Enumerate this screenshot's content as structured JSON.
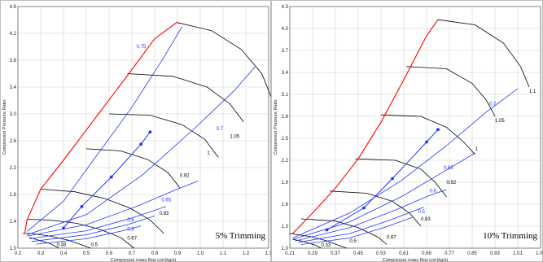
{
  "chart_data": [
    {
      "type": "line",
      "title": "",
      "annotation": "5% Trimming",
      "xlabel": "Compressor mass flow corr(kg/s)",
      "ylabel": "Compressor Pressure Ratio",
      "xlim": [
        0.2,
        1.3
      ],
      "ylim": [
        1.0,
        4.6
      ],
      "x_ticks": [
        "0.2",
        "0.3",
        "0.4",
        "0.5",
        "0.6",
        "0.7",
        "0.8",
        "0.9",
        "1.0",
        "1.1",
        "1.2",
        "1.3"
      ],
      "y_ticks": [
        "1.0",
        "1.4",
        "1.8",
        "2.2",
        "2.6",
        "3.0",
        "3.4",
        "3.8",
        "4.2",
        "4.6"
      ],
      "colors": {
        "surge": "#ff0000",
        "efficiency": "#1f35ff",
        "speed": "#000000",
        "operating_points": "#1f35ff"
      },
      "surge_line": {
        "x": [
          0.23,
          0.24,
          0.3,
          0.4,
          0.5,
          0.6,
          0.7,
          0.8,
          0.9
        ],
        "y": [
          1.22,
          1.42,
          1.88,
          2.31,
          2.76,
          3.21,
          3.66,
          4.12,
          4.37
        ]
      },
      "speed_lines": [
        {
          "label": "0.5",
          "x": [
            0.22,
            0.26,
            0.34,
            0.42,
            0.48,
            0.52
          ],
          "y": [
            1.22,
            1.22,
            1.18,
            1.12,
            1.05,
            1.0
          ]
        },
        {
          "label": "0.33",
          "x": [
            0.25,
            0.29,
            0.34,
            0.38
          ],
          "y": [
            1.16,
            1.12,
            1.07,
            1.0
          ]
        },
        {
          "label": "0.67",
          "x": [
            0.24,
            0.34,
            0.46,
            0.56,
            0.65,
            0.71
          ],
          "y": [
            1.43,
            1.42,
            1.37,
            1.28,
            1.16,
            1.0
          ]
        },
        {
          "label": "0.83",
          "x": [
            0.3,
            0.45,
            0.58,
            0.69,
            0.78,
            0.84
          ],
          "y": [
            1.88,
            1.84,
            1.74,
            1.6,
            1.42,
            1.22
          ]
        },
        {
          "label": "0.92",
          "x": [
            0.5,
            0.65,
            0.77,
            0.86,
            0.91
          ],
          "y": [
            2.48,
            2.45,
            2.32,
            2.12,
            1.9
          ]
        },
        {
          "label": "1",
          "x": [
            0.6,
            0.78,
            0.92,
            1.02,
            1.08
          ],
          "y": [
            3.0,
            2.98,
            2.84,
            2.62,
            2.35
          ]
        },
        {
          "label": "1.05",
          "x": [
            0.68,
            0.88,
            1.03,
            1.13,
            1.19
          ],
          "y": [
            3.6,
            3.56,
            3.4,
            3.15,
            2.88
          ]
        },
        {
          "label": "1.1",
          "x": [
            0.9,
            1.05,
            1.18,
            1.27,
            1.31
          ],
          "y": [
            4.36,
            4.24,
            3.96,
            3.6,
            3.26
          ]
        }
      ],
      "efficiency_lines": [
        {
          "label": "0.75",
          "x": [
            0.24,
            0.4,
            0.55,
            0.7,
            0.84,
            0.92
          ],
          "y": [
            1.25,
            1.7,
            2.4,
            3.1,
            3.84,
            4.3
          ]
        },
        {
          "label": "0.7",
          "x": [
            0.24,
            0.5,
            0.75,
            0.98,
            1.15,
            1.24
          ],
          "y": [
            1.2,
            1.5,
            2.1,
            2.8,
            3.35,
            3.7
          ]
        },
        {
          "label": "0.65",
          "x": [
            0.24,
            0.5,
            0.72,
            0.9,
            0.99
          ],
          "y": [
            1.18,
            1.35,
            1.62,
            1.88,
            2.0
          ]
        },
        {
          "label": "0.6",
          "x": [
            0.25,
            0.5,
            0.7,
            0.85
          ],
          "y": [
            1.14,
            1.26,
            1.45,
            1.62
          ]
        },
        {
          "label": "0.55",
          "x": [
            0.26,
            0.5,
            0.68,
            0.8
          ],
          "y": [
            1.1,
            1.2,
            1.35,
            1.48
          ]
        },
        {
          "label": "0.5",
          "x": [
            0.28,
            0.5,
            0.66,
            0.74
          ],
          "y": [
            1.06,
            1.14,
            1.26,
            1.33
          ]
        }
      ],
      "curve_labels_visible": [
        {
          "text": "0.75",
          "x": 0.72,
          "y": 3.98
        },
        {
          "text": "0.7",
          "x": 1.07,
          "y": 2.76
        },
        {
          "text": "0.65",
          "x": 0.83,
          "y": 1.7
        },
        {
          "text": "0.6",
          "x": 0.68,
          "y": 1.4
        },
        {
          "text": "0.5",
          "x": 0.68,
          "y": 1.26
        },
        {
          "text": "0.33",
          "x": 0.37,
          "y": 1.03
        },
        {
          "text": "0.5",
          "x": 0.52,
          "y": 1.03
        },
        {
          "text": "0.67",
          "x": 0.68,
          "y": 1.13
        },
        {
          "text": "0.83",
          "x": 0.82,
          "y": 1.5
        },
        {
          "text": "0.92",
          "x": 0.91,
          "y": 2.06
        },
        {
          "text": "1",
          "x": 1.03,
          "y": 2.4
        },
        {
          "text": "1.05",
          "x": 1.13,
          "y": 2.64
        },
        {
          "text": "1.1",
          "x": 1.31,
          "y": 3.26
        }
      ],
      "operating_points": {
        "x": [
          0.4,
          0.48,
          0.61,
          0.74,
          0.78
        ],
        "y": [
          1.3,
          1.62,
          2.06,
          2.55,
          2.73
        ]
      }
    },
    {
      "type": "line",
      "title": "",
      "annotation": "10% Trimming",
      "xlabel": "Compressor mass flow corr(kg/s)",
      "ylabel": "Compressor Pressure Ratio",
      "xlim": [
        0.21,
        1.09
      ],
      "ylim": [
        1.0,
        4.3
      ],
      "x_ticks": [
        "0.21",
        "0.29",
        "0.37",
        "0.45",
        "0.53",
        "0.61",
        "0.69",
        "0.77",
        "0.85",
        "0.93",
        "1.01",
        "1.09"
      ],
      "y_ticks": [
        "1.0",
        "1.3",
        "1.6",
        "1.9",
        "2.2",
        "2.5",
        "2.8",
        "3.1",
        "3.4",
        "3.7",
        "4.0",
        "4.3"
      ],
      "colors": {
        "surge": "#ff0000",
        "efficiency": "#1f35ff",
        "speed": "#000000",
        "operating_points": "#1f35ff"
      },
      "surge_line": {
        "x": [
          0.22,
          0.29,
          0.37,
          0.45,
          0.53,
          0.61,
          0.69,
          0.73
        ],
        "y": [
          1.2,
          1.48,
          1.82,
          2.22,
          2.72,
          3.3,
          3.9,
          4.12
        ]
      },
      "speed_lines": [
        {
          "label": "0.5",
          "x": [
            0.21,
            0.28,
            0.34,
            0.38,
            0.41
          ],
          "y": [
            1.2,
            1.16,
            1.1,
            1.04,
            1.0
          ]
        },
        {
          "label": "0.33",
          "x": [
            0.22,
            0.26,
            0.3,
            0.32
          ],
          "y": [
            1.12,
            1.09,
            1.04,
            1.0
          ]
        },
        {
          "label": "0.67",
          "x": [
            0.25,
            0.37,
            0.45,
            0.52,
            0.55
          ],
          "y": [
            1.4,
            1.37,
            1.28,
            1.15,
            1.05
          ]
        },
        {
          "label": "0.83",
          "x": [
            0.35,
            0.48,
            0.57,
            0.63,
            0.67
          ],
          "y": [
            1.78,
            1.75,
            1.64,
            1.48,
            1.3
          ]
        },
        {
          "label": "0.92",
          "x": [
            0.44,
            0.58,
            0.67,
            0.72,
            0.76
          ],
          "y": [
            2.22,
            2.2,
            2.08,
            1.9,
            1.7
          ]
        },
        {
          "label": "1",
          "x": [
            0.53,
            0.67,
            0.76,
            0.82,
            0.86
          ],
          "y": [
            2.82,
            2.8,
            2.65,
            2.45,
            2.28
          ]
        },
        {
          "label": "1.05",
          "x": [
            0.62,
            0.76,
            0.85,
            0.9,
            0.93
          ],
          "y": [
            3.48,
            3.45,
            3.25,
            3.02,
            2.8
          ]
        },
        {
          "label": "1.1",
          "x": [
            0.73,
            0.86,
            0.96,
            1.02,
            1.05
          ],
          "y": [
            4.12,
            4.05,
            3.8,
            3.48,
            3.2
          ]
        }
      ],
      "efficiency_lines": [
        {
          "label": "0.7",
          "x": [
            0.22,
            0.42,
            0.6,
            0.76,
            0.9,
            1.01
          ],
          "y": [
            1.14,
            1.48,
            1.92,
            2.4,
            2.86,
            3.18
          ]
        },
        {
          "label": "0.65",
          "x": [
            0.22,
            0.42,
            0.6,
            0.74,
            0.86
          ],
          "y": [
            1.12,
            1.36,
            1.7,
            2.02,
            2.3
          ]
        },
        {
          "label": "0.6",
          "x": [
            0.23,
            0.42,
            0.58,
            0.7,
            0.76
          ],
          "y": [
            1.1,
            1.28,
            1.52,
            1.72,
            1.8
          ]
        },
        {
          "label": "0.55",
          "x": [
            0.24,
            0.42,
            0.56,
            0.68
          ],
          "y": [
            1.08,
            1.2,
            1.38,
            1.56
          ]
        },
        {
          "label": "0.5",
          "x": [
            0.25,
            0.42,
            0.54,
            0.64
          ],
          "y": [
            1.05,
            1.14,
            1.28,
            1.42
          ]
        }
      ],
      "curve_labels_visible": [
        {
          "text": "0.7",
          "x": 0.91,
          "y": 2.95
        },
        {
          "text": "0.65",
          "x": 0.75,
          "y": 2.08
        },
        {
          "text": "0.6",
          "x": 0.7,
          "y": 1.76
        },
        {
          "text": "0.5",
          "x": 0.66,
          "y": 1.48
        },
        {
          "text": "0.33",
          "x": 0.32,
          "y": 1.02
        },
        {
          "text": "0.5",
          "x": 0.42,
          "y": 1.08
        },
        {
          "text": "0.67",
          "x": 0.55,
          "y": 1.13
        },
        {
          "text": "0.83",
          "x": 0.67,
          "y": 1.38
        },
        {
          "text": "0.92",
          "x": 0.76,
          "y": 1.88
        },
        {
          "text": "1",
          "x": 0.86,
          "y": 2.34
        },
        {
          "text": "1.05",
          "x": 0.93,
          "y": 2.72
        },
        {
          "text": "1.1",
          "x": 1.05,
          "y": 3.12
        }
      ],
      "operating_points": {
        "x": [
          0.34,
          0.47,
          0.57,
          0.69,
          0.73
        ],
        "y": [
          1.25,
          1.55,
          1.95,
          2.45,
          2.62
        ]
      }
    }
  ]
}
